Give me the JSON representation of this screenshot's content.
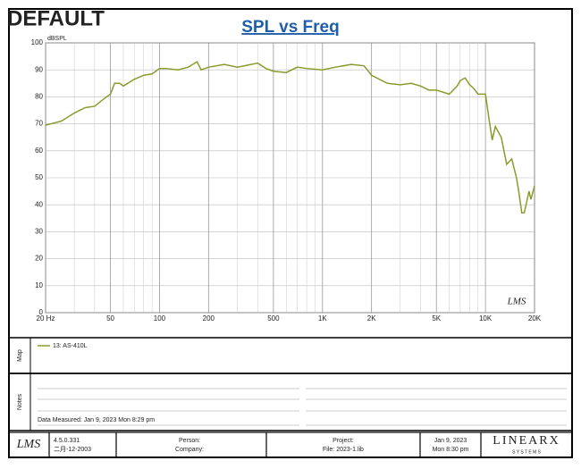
{
  "badge": "DEFAULT",
  "chart_data": {
    "type": "line",
    "title": "SPL vs Freq",
    "y_label": "dBSPL",
    "watermark": "LMS",
    "log_x": true,
    "grid": true,
    "xlim": [
      20,
      20000
    ],
    "ylim": [
      0,
      100
    ],
    "xticks": [
      {
        "value": 20,
        "label": "20 Hz"
      },
      50,
      100,
      200,
      500,
      {
        "value": 1000,
        "label": "1K"
      },
      {
        "value": 2000,
        "label": "2K"
      },
      {
        "value": 5000,
        "label": "5K"
      },
      {
        "value": 10000,
        "label": "10K"
      },
      {
        "value": 20000,
        "label": "20K"
      }
    ],
    "minor_xticks": [
      30,
      40,
      60,
      70,
      80,
      90,
      300,
      400,
      600,
      700,
      800,
      900,
      3000,
      4000,
      6000,
      7000,
      8000,
      9000
    ],
    "yticks": [
      0,
      10,
      20,
      30,
      40,
      50,
      60,
      70,
      80,
      90,
      100
    ],
    "x": [
      20,
      25,
      30,
      35,
      40,
      45,
      50,
      53,
      57,
      60,
      70,
      80,
      90,
      100,
      110,
      130,
      150,
      170,
      180,
      200,
      250,
      300,
      400,
      450,
      500,
      600,
      700,
      800,
      1000,
      1200,
      1500,
      1800,
      2000,
      2500,
      3000,
      3500,
      4000,
      4500,
      5000,
      6000,
      6700,
      7000,
      7500,
      8000,
      8500,
      9000,
      10000,
      10500,
      11000,
      11500,
      12500,
      13500,
      14500,
      15500,
      16000,
      16700,
      17300,
      18500,
      19000,
      20000
    ],
    "series": [
      {
        "name": "13: AS-410L",
        "color": "#8c9a2c",
        "values": [
          69.5,
          71,
          74,
          76,
          76.5,
          79,
          81,
          85,
          85,
          84,
          86.5,
          88,
          88.5,
          90.5,
          90.5,
          90,
          91,
          93,
          90,
          91,
          92,
          91,
          92.5,
          90.5,
          89.5,
          89,
          91,
          90.5,
          90,
          91,
          92,
          91.5,
          88,
          85,
          84.5,
          85,
          84,
          82.5,
          82.5,
          81,
          84,
          86,
          87,
          84.5,
          83,
          81,
          81,
          72,
          64,
          69,
          65,
          55,
          57,
          50,
          45,
          37,
          37,
          45,
          42,
          47
        ]
      }
    ]
  },
  "map": {
    "label": "Map"
  },
  "notes": {
    "label": "Notes",
    "measured": "Data Measured: Jan  9, 2023  Mon  8:29 pm"
  },
  "footer": {
    "logo": "LMS",
    "version": "4.5.0.331",
    "build_date": "二月-12-2003",
    "person": "Person:",
    "company": "Company:",
    "project": "Project:",
    "file": "File: 2023-1.lib",
    "date": "Jan  9, 2023",
    "time": "Mon  8:30 pm",
    "brand": "LINEARX",
    "brand_sub": "S Y S T E M S"
  }
}
